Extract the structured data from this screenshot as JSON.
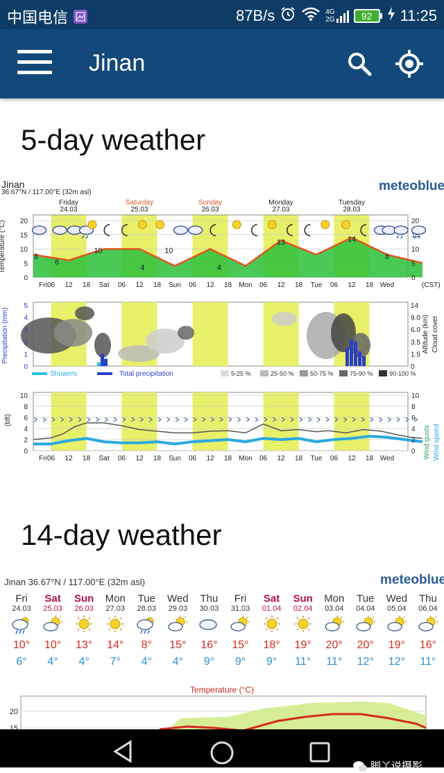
{
  "status": {
    "carrier": "中国电信",
    "speed": "87B/s",
    "net1": "4G",
    "net2": "2G",
    "battery": "92",
    "time": "11:25"
  },
  "appbar": {
    "title": "Jinan"
  },
  "five_day": {
    "title": "5-day weather",
    "location": "Jinan",
    "coords": "36.67°N / 117.00°E (32m asl)",
    "logo": "meteoblue",
    "days": [
      {
        "name": "Friday",
        "date": "24.03",
        "color": "#222"
      },
      {
        "name": "Saturday",
        "date": "25.03",
        "color": "#d9531e"
      },
      {
        "name": "Sunday",
        "date": "26.03",
        "color": "#d9531e"
      },
      {
        "name": "Monday",
        "date": "27.03",
        "color": "#222"
      },
      {
        "name": "Tuesday",
        "date": "28.03",
        "color": "#222"
      }
    ],
    "x_ticks": [
      "Fri",
      "06",
      "12",
      "18",
      "Sat",
      "06",
      "12",
      "18",
      "Sun",
      "06",
      "12",
      "18",
      "Mon",
      "06",
      "12",
      "18",
      "Tue",
      "06",
      "12",
      "18",
      "Wed"
    ],
    "cst": "(CST)",
    "temp_axis": {
      "label": "Temperature (°C)",
      "ticks": [
        "20",
        "15",
        "10",
        "5",
        "0"
      ]
    },
    "temp_labels": [
      "8",
      "6",
      "10",
      "4",
      "10",
      "4",
      "13",
      "14",
      "8"
    ],
    "precip_axis": {
      "label": "Precipitation (mm)",
      "ticks": [
        "5",
        "4",
        "3",
        "2",
        "1",
        "0"
      ],
      "right_ticks": [
        "14",
        "9.0",
        "6.0",
        "3.5",
        "1.5",
        "0"
      ],
      "right_label": "Altitude (km)",
      "right_label2": "Cloud cover"
    },
    "legend": {
      "showers": "Showers",
      "total": "Total precipitation",
      "c1": "5-25 %",
      "c2": "25-50 %",
      "c3": "50-75 %",
      "c4": "75-90 %",
      "c5": "90-100 %"
    },
    "wind_axis": {
      "label": "(bft)",
      "ticks": [
        "10",
        "8",
        "6",
        "4",
        "2",
        "0"
      ],
      "right_label": "Wind gusts",
      "right_label2": "Wind speed"
    }
  },
  "fourteen_day": {
    "title": "14-day weather",
    "location": "Jinan  36.67°N / 117.00°E (32m asl)",
    "logo": "meteoblue",
    "days": [
      {
        "name": "Fri",
        "date": "24.03",
        "icon": "rain-cloud-icon",
        "max": "10°",
        "min": "6°",
        "weekend": false
      },
      {
        "name": "Sat",
        "date": "25.03",
        "icon": "sun-cloud-icon",
        "max": "10°",
        "min": "4°",
        "weekend": true
      },
      {
        "name": "Sun",
        "date": "26.03",
        "icon": "sun-icon",
        "max": "13°",
        "min": "4°",
        "weekend": true
      },
      {
        "name": "Mon",
        "date": "27.03",
        "icon": "sun-icon",
        "max": "14°",
        "min": "7°",
        "weekend": false
      },
      {
        "name": "Tue",
        "date": "28.03",
        "icon": "rain-cloud-icon",
        "max": "8°",
        "min": "4°",
        "weekend": false
      },
      {
        "name": "Wed",
        "date": "29.03",
        "icon": "sun-cloud-icon",
        "max": "15°",
        "min": "4°",
        "weekend": false
      },
      {
        "name": "Thu",
        "date": "30.03",
        "icon": "cloud-icon",
        "max": "16°",
        "min": "9°",
        "weekend": false
      },
      {
        "name": "Fri",
        "date": "31.03",
        "icon": "sun-cloud-icon",
        "max": "15°",
        "min": "9°",
        "weekend": false
      },
      {
        "name": "Sat",
        "date": "01.04",
        "icon": "sun-icon",
        "max": "18°",
        "min": "9°",
        "weekend": true
      },
      {
        "name": "Sun",
        "date": "02.04",
        "icon": "sun-icon",
        "max": "19°",
        "min": "11°",
        "weekend": true
      },
      {
        "name": "Mon",
        "date": "03.04",
        "icon": "sun-cloud-icon",
        "max": "20°",
        "min": "11°",
        "weekend": false
      },
      {
        "name": "Tue",
        "date": "04.04",
        "icon": "sun-cloud-icon",
        "max": "20°",
        "min": "12°",
        "weekend": false
      },
      {
        "name": "Wed",
        "date": "05.04",
        "icon": "sun-cloud-icon",
        "max": "19°",
        "min": "12°",
        "weekend": false
      },
      {
        "name": "Thu",
        "date": "06.04",
        "icon": "sun-cloud-icon",
        "max": "16°",
        "min": "11°",
        "weekend": false
      }
    ],
    "temp_chart_title": "Temperature (°C)",
    "temp_ticks": [
      "20",
      "15"
    ]
  },
  "watermark": "脚丫说摄影",
  "colors": {
    "statusbar": "#0d3d66",
    "appbar": "#12497a",
    "max_temp": "#d42a1e",
    "min_temp": "#2c8fd6",
    "weekend": "#b0124a",
    "daylight": "#e8f06a",
    "temp_fill": "#2cbf3a"
  }
}
